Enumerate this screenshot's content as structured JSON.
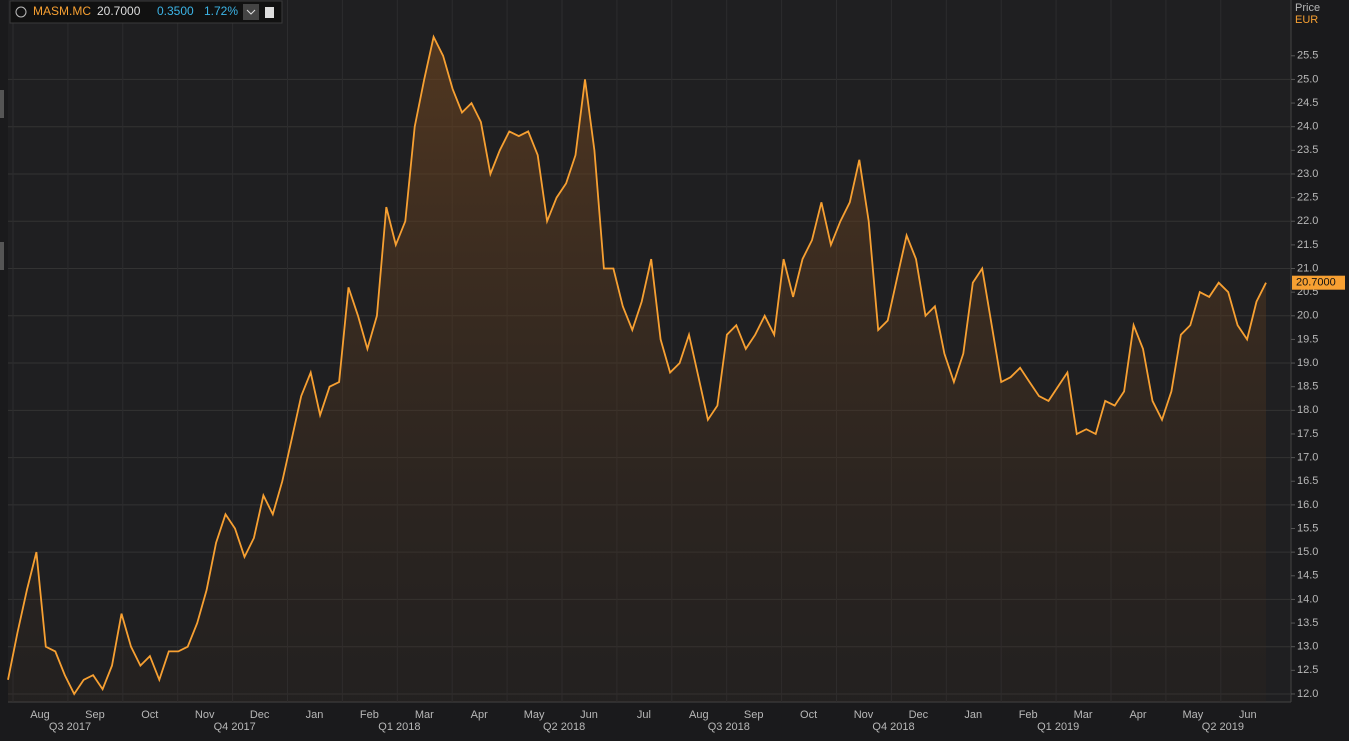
{
  "header": {
    "symbol": "MASM.MC",
    "price": "20.7000",
    "change": "0.3500",
    "change_pct": "1.72%"
  },
  "chart_data": {
    "type": "line",
    "y_label": "Price",
    "y_unit": "EUR",
    "months": [
      "Aug",
      "Sep",
      "Oct",
      "Nov",
      "Dec",
      "Jan",
      "Feb",
      "Mar",
      "Apr",
      "May",
      "Jun",
      "Jul",
      "Aug",
      "Sep",
      "Oct",
      "Nov",
      "Dec",
      "Jan",
      "Feb",
      "Mar",
      "Apr",
      "May",
      "Jun"
    ],
    "quarters": [
      "Q3 2017",
      "Q4 2017",
      "Q1 2018",
      "Q2 2018",
      "Q3 2018",
      "Q4 2018",
      "Q1 2019",
      "Q2 2019"
    ],
    "series": [
      {
        "name": "MASM.MC",
        "color": "#f7a032",
        "values": [
          12.3,
          13.3,
          14.2,
          15.0,
          13.0,
          12.9,
          12.4,
          12.0,
          12.3,
          12.4,
          12.1,
          12.6,
          13.7,
          13.0,
          12.6,
          12.8,
          12.3,
          12.9,
          12.9,
          13.0,
          13.5,
          14.2,
          15.2,
          15.8,
          15.5,
          14.9,
          15.3,
          16.2,
          15.8,
          16.5,
          17.4,
          18.3,
          18.8,
          17.9,
          18.5,
          18.6,
          20.6,
          20.0,
          19.3,
          20.0,
          22.3,
          21.5,
          22.0,
          24.0,
          25.0,
          25.9,
          25.5,
          24.8,
          24.3,
          24.5,
          24.1,
          23.0,
          23.5,
          23.9,
          23.8,
          23.9,
          23.4,
          22.0,
          22.5,
          22.8,
          23.4,
          25.0,
          23.5,
          21.0,
          21.0,
          20.2,
          19.7,
          20.3,
          21.2,
          19.5,
          18.8,
          19.0,
          19.6,
          18.7,
          17.8,
          18.1,
          19.6,
          19.8,
          19.3,
          19.6,
          20.0,
          19.6,
          21.2,
          20.4,
          21.2,
          21.6,
          22.4,
          21.5,
          22.0,
          22.4,
          23.3,
          22.0,
          19.7,
          19.9,
          20.8,
          21.7,
          21.2,
          20.0,
          20.2,
          19.2,
          18.6,
          19.2,
          20.7,
          21.0,
          19.8,
          18.6,
          18.7,
          18.9,
          18.6,
          18.3,
          18.2,
          18.5,
          18.8,
          17.5,
          17.6,
          17.5,
          18.2,
          18.1,
          18.4,
          19.8,
          19.3,
          18.2,
          17.8,
          18.4,
          19.6,
          19.8,
          20.5,
          20.4,
          20.7,
          20.5,
          19.8,
          19.5,
          20.3,
          20.7
        ]
      }
    ],
    "ylim": [
      11.83,
      26.68
    ],
    "yticks": [
      {
        "value": 12,
        "label": "12.0"
      },
      {
        "value": 12.5,
        "label": "12.5"
      },
      {
        "value": 13,
        "label": "13.0"
      },
      {
        "value": 13.5,
        "label": "13.5"
      },
      {
        "value": 14,
        "label": "14.0"
      },
      {
        "value": 14.5,
        "label": "14.5"
      },
      {
        "value": 15,
        "label": "15.0"
      },
      {
        "value": 15.5,
        "label": "15.5"
      },
      {
        "value": 16,
        "label": "16.0"
      },
      {
        "value": 16.5,
        "label": "16.5"
      },
      {
        "value": 17,
        "label": "17.0"
      },
      {
        "value": 17.5,
        "label": "17.5"
      },
      {
        "value": 18,
        "label": "18.0"
      },
      {
        "value": 18.5,
        "label": "18.5"
      },
      {
        "value": 19,
        "label": "19.0"
      },
      {
        "value": 19.5,
        "label": "19.5"
      },
      {
        "value": 20,
        "label": "20.0"
      },
      {
        "value": 20.5,
        "label": "20.5"
      },
      {
        "value": 21,
        "label": "21.0"
      },
      {
        "value": 21.5,
        "label": "21.5"
      },
      {
        "value": 22,
        "label": "22.0"
      },
      {
        "value": 22.5,
        "label": "22.5"
      },
      {
        "value": 23,
        "label": "23.0"
      },
      {
        "value": 23.5,
        "label": "23.5"
      },
      {
        "value": 24,
        "label": "24.0"
      },
      {
        "value": 24.5,
        "label": "24.5"
      },
      {
        "value": 25,
        "label": "25.0"
      },
      {
        "value": 25.5,
        "label": "25.5"
      }
    ],
    "last_value": 20.7
  }
}
